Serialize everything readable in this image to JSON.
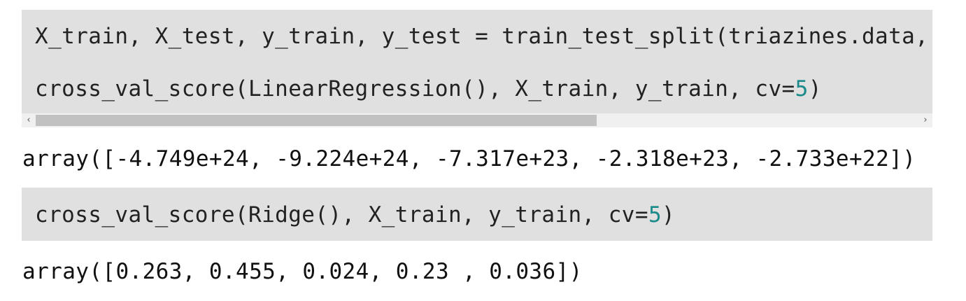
{
  "cells": [
    {
      "lines": [
        {
          "text": "X_train, X_test, y_train, y_test = train_test_split(triazines.data, t"
        },
        {
          "pre": "cross_val_score(LinearRegression(), X_train, y_train, cv=",
          "num": "5",
          "post": ")"
        }
      ],
      "scrollbar": {
        "left_arrow": "‹",
        "right_arrow": "›"
      },
      "output": "array([-4.749e+24, -9.224e+24, -7.317e+23, -2.318e+23, -2.733e+22])"
    },
    {
      "lines": [
        {
          "pre": "cross_val_score(Ridge(), X_train, y_train, cv=",
          "num": "5",
          "post": ")"
        }
      ],
      "output": "array([0.263, 0.455, 0.024, 0.23 , 0.036])"
    }
  ]
}
